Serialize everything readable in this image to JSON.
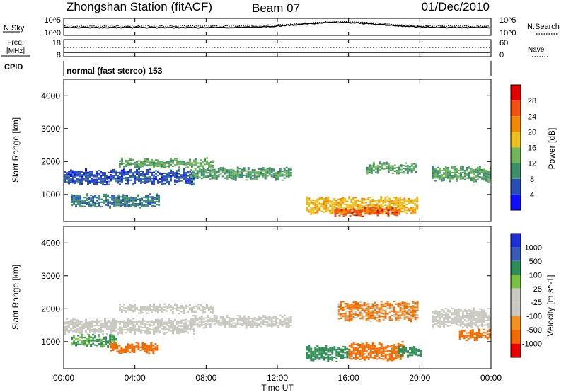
{
  "header": {
    "title": "Zhongshan Station (fitACF)",
    "beam": "Beam 07",
    "date": "01/Dec/2010"
  },
  "panels": {
    "noise": {
      "left_label": "N.Sky",
      "right_label": "N.Search",
      "left_ticks": [
        "10^5",
        "10^0"
      ],
      "right_ticks": [
        "10^5",
        "10^0"
      ]
    },
    "freq": {
      "left_label_1": "Freq.",
      "left_label_2": "[MHz]",
      "right_label": "Nave",
      "left_ticks": [
        "18",
        "8"
      ],
      "right_ticks": [
        "60",
        "0"
      ]
    },
    "cpid": {
      "label": "CPID",
      "text": "normal (fast stereo) 153"
    }
  },
  "x_axis": {
    "title": "Time UT",
    "ticks": [
      "00:00",
      "04:00",
      "08:00",
      "12:00",
      "16:00",
      "20:00",
      "00:00"
    ]
  },
  "colors": {
    "power_scale": [
      "#1010ff",
      "#2a4fb4",
      "#3d8d6a",
      "#6fb45a",
      "#e8c020",
      "#f08a00",
      "#f05010",
      "#e00000"
    ],
    "velocity_scale": [
      "#e80000",
      "#f06a00",
      "#f09020",
      "#c8c8c0",
      "#c8c8c0",
      "#78c040",
      "#2e8c55",
      "#3a5ab8",
      "#2030d8"
    ]
  },
  "chart_data": [
    {
      "type": "heatmap",
      "title": "Power",
      "xlabel": "",
      "ylabel": "Slant Range [km]",
      "xlim": [
        0,
        24
      ],
      "ylim": [
        180,
        4500
      ],
      "y_ticks": [
        1000,
        2000,
        3000,
        4000
      ],
      "colorbar": {
        "label": "Power [dB]",
        "ticks": [
          "4",
          "8",
          "12",
          "16",
          "20",
          "24",
          "28"
        ],
        "range": [
          0,
          32
        ]
      },
      "echo_bands": [
        {
          "t_start": 0.0,
          "t_end": 7.3,
          "range_center": 1520,
          "range_width": 380,
          "value": 6
        },
        {
          "t_start": 0.4,
          "t_end": 5.4,
          "range_center": 780,
          "range_width": 320,
          "value": 9
        },
        {
          "t_start": 3.1,
          "t_end": 8.4,
          "range_center": 1950,
          "range_width": 220,
          "value": 13
        },
        {
          "t_start": 7.1,
          "t_end": 12.8,
          "range_center": 1620,
          "range_width": 300,
          "value": 11
        },
        {
          "t_start": 13.6,
          "t_end": 19.8,
          "range_center": 650,
          "range_width": 420,
          "value": 19
        },
        {
          "t_start": 15.2,
          "t_end": 18.8,
          "range_center": 470,
          "range_width": 200,
          "value": 26
        },
        {
          "t_start": 17.0,
          "t_end": 19.8,
          "range_center": 1800,
          "range_width": 260,
          "value": 12
        },
        {
          "t_start": 20.7,
          "t_end": 24.0,
          "range_center": 1620,
          "range_width": 400,
          "value": 12
        }
      ]
    },
    {
      "type": "heatmap",
      "title": "Velocity",
      "xlabel": "Time UT",
      "ylabel": "Slant Range [km]",
      "xlim": [
        0,
        24
      ],
      "ylim": [
        180,
        4500
      ],
      "y_ticks": [
        1000,
        2000,
        3000,
        4000
      ],
      "colorbar": {
        "label": "Velocity [m s^-1]",
        "ticks": [
          "1000",
          "500",
          "100",
          "25",
          "-25",
          "-100",
          "-500",
          "-1000"
        ]
      },
      "echo_bands": [
        {
          "t_start": 0.0,
          "t_end": 7.3,
          "range_center": 1450,
          "range_width": 380,
          "value": 0
        },
        {
          "t_start": 0.4,
          "t_end": 3.0,
          "range_center": 1000,
          "range_width": 280,
          "value": 150
        },
        {
          "t_start": 2.6,
          "t_end": 5.3,
          "range_center": 800,
          "range_width": 260,
          "value": -300
        },
        {
          "t_start": 3.1,
          "t_end": 8.4,
          "range_center": 2000,
          "range_width": 220,
          "value": 0
        },
        {
          "t_start": 7.1,
          "t_end": 12.8,
          "range_center": 1600,
          "range_width": 300,
          "value": 0
        },
        {
          "t_start": 13.6,
          "t_end": 16.0,
          "range_center": 620,
          "range_width": 380,
          "value": 300
        },
        {
          "t_start": 16.0,
          "t_end": 19.0,
          "range_center": 700,
          "range_width": 480,
          "value": -300
        },
        {
          "t_start": 18.8,
          "t_end": 20.1,
          "range_center": 700,
          "range_width": 260,
          "value": 300
        },
        {
          "t_start": 15.4,
          "t_end": 19.9,
          "range_center": 1900,
          "range_width": 500,
          "value": -100
        },
        {
          "t_start": 20.7,
          "t_end": 24.0,
          "range_center": 1700,
          "range_width": 500,
          "value": 0
        },
        {
          "t_start": 22.2,
          "t_end": 24.0,
          "range_center": 1200,
          "range_width": 260,
          "value": -300
        }
      ]
    }
  ]
}
